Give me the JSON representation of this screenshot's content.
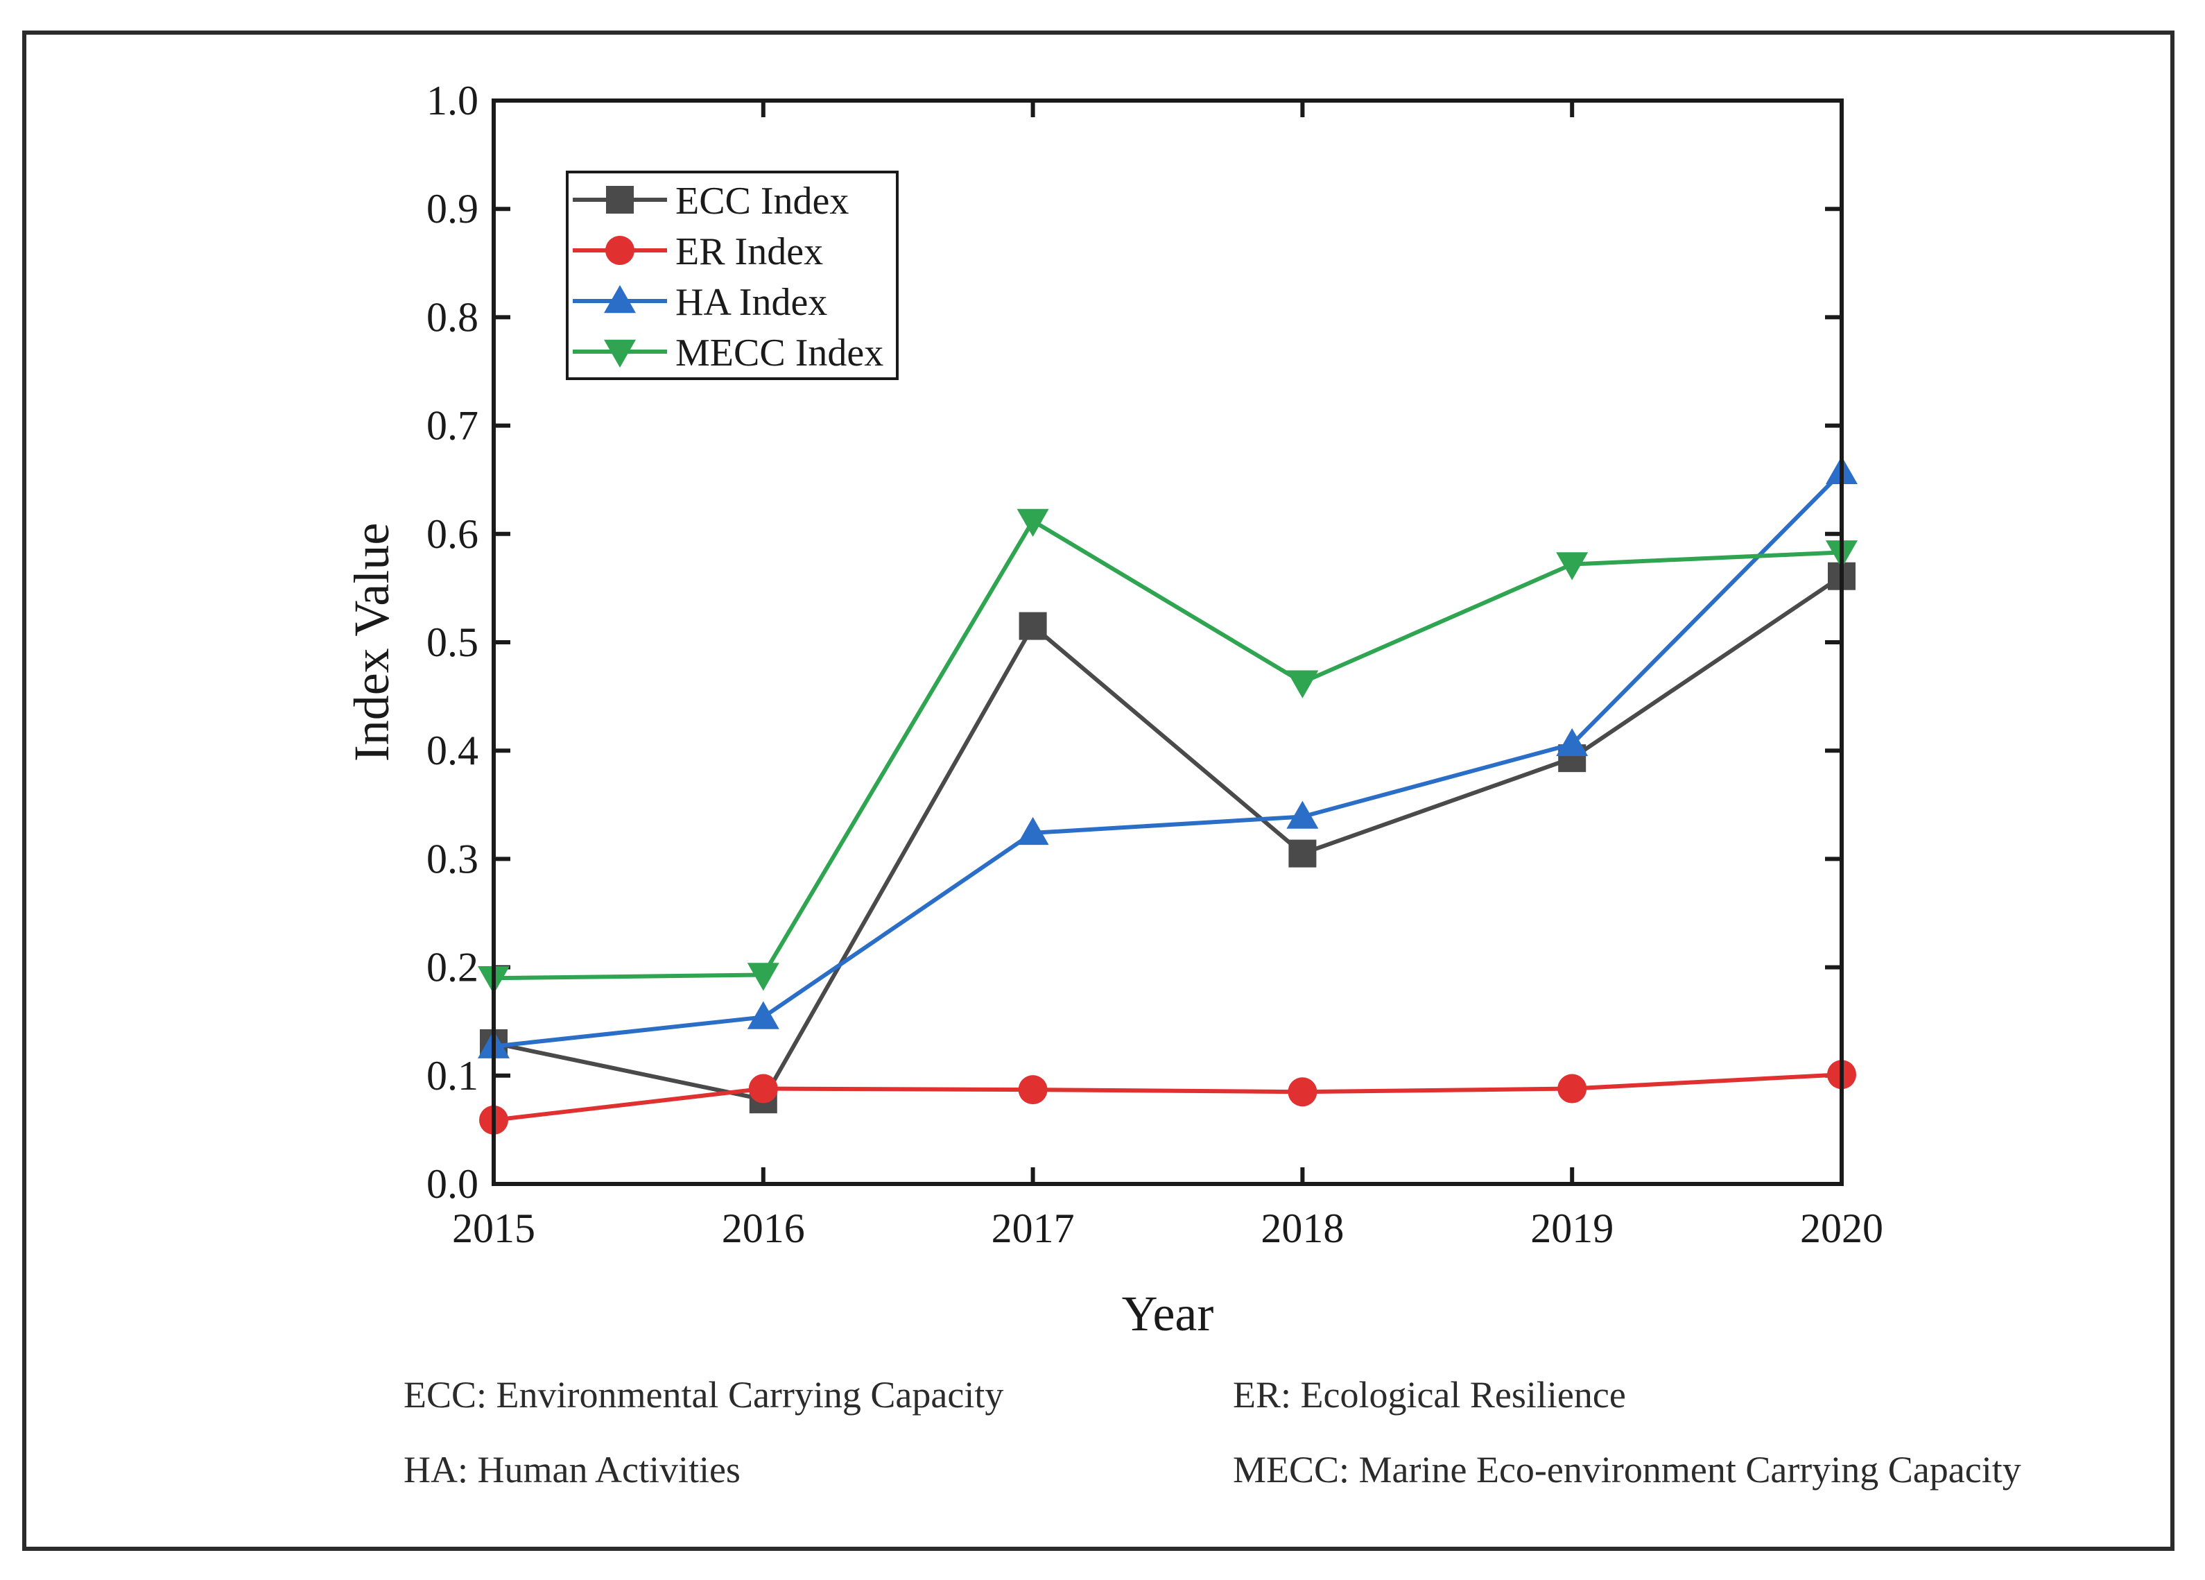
{
  "chart_data": {
    "type": "line",
    "title": "",
    "xlabel": "Year",
    "ylabel": "Index Value",
    "x": [
      2015,
      2016,
      2017,
      2018,
      2019,
      2020
    ],
    "x_tick_labels": [
      "2015",
      "2016",
      "2017",
      "2018",
      "2019",
      "2020"
    ],
    "ylim": [
      0.0,
      1.0
    ],
    "y_tick_labels": [
      "0.0",
      "0.1",
      "0.2",
      "0.3",
      "0.4",
      "0.5",
      "0.6",
      "0.7",
      "0.8",
      "0.9",
      "1.0"
    ],
    "grid": false,
    "legend_position": "top-left",
    "series": [
      {
        "name": "ECC Index",
        "color": "#4a4a4a",
        "marker": "square",
        "values": [
          0.13,
          0.078,
          0.515,
          0.305,
          0.393,
          0.561
        ]
      },
      {
        "name": "ER Index",
        "color": "#e03030",
        "marker": "circle",
        "values": [
          0.059,
          0.088,
          0.087,
          0.085,
          0.088,
          0.101
        ]
      },
      {
        "name": "HA Index",
        "color": "#2a6ec8",
        "marker": "triangle-up",
        "values": [
          0.127,
          0.154,
          0.324,
          0.339,
          0.406,
          0.657
        ]
      },
      {
        "name": "MECC Index",
        "color": "#2fa552",
        "marker": "triangle-down",
        "values": [
          0.19,
          0.193,
          0.612,
          0.463,
          0.572,
          0.583
        ]
      }
    ]
  },
  "abbreviations": [
    {
      "text": "ECC: Environmental Carrying Capacity"
    },
    {
      "text": "ER: Ecological Resilience"
    },
    {
      "text": "HA: Human Activities"
    },
    {
      "text": "MECC: Marine Eco-environment Carrying Capacity"
    }
  ]
}
